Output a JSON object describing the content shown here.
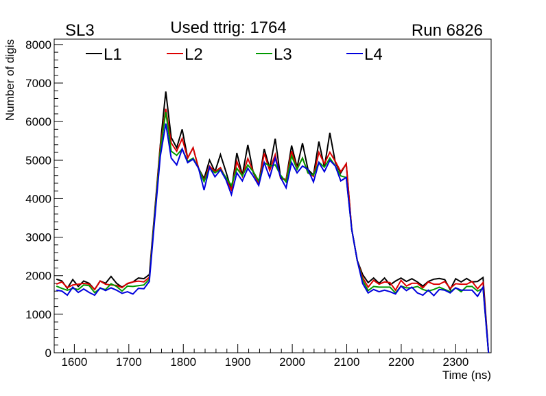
{
  "chart_data": {
    "type": "line",
    "title_left": "SL3",
    "title": "Used ttrig: 1764",
    "title_right": "Run 6826",
    "xlabel": "Time (ns)",
    "ylabel": "Number of digis",
    "xlim": [
      1563,
      2365
    ],
    "ylim": [
      0,
      8140
    ],
    "x_start": 1567,
    "x_step": 10.04,
    "xticks": [
      1600,
      1700,
      1800,
      1900,
      2000,
      2100,
      2200,
      2300
    ],
    "yticks": [
      0,
      1000,
      2000,
      3000,
      4000,
      5000,
      6000,
      7000,
      8000
    ],
    "grid": false,
    "legend_position": "top",
    "series": [
      {
        "name": "L1",
        "color": "#000000",
        "values": [
          1910,
          1863,
          1673,
          1898,
          1720,
          1863,
          1803,
          1643,
          1863,
          1803,
          1981,
          1803,
          1703,
          1791,
          1839,
          1940,
          1922,
          2028,
          3700,
          5400,
          6780,
          5587,
          5320,
          5800,
          5053,
          5320,
          4786,
          4520,
          5000,
          4698,
          5142,
          4698,
          4223,
          5184,
          4609,
          5397,
          4668,
          4401,
          5290,
          4786,
          5557,
          4549,
          4490,
          5379,
          4816,
          5439,
          4757,
          4609,
          5480,
          4816,
          5706,
          4935,
          4668,
          4905,
          3200,
          2400,
          2028,
          1821,
          1940,
          1803,
          1940,
          1762,
          1862,
          1940,
          1851,
          1922,
          1839,
          1732,
          1851,
          1910,
          1928,
          1898,
          1643,
          1922,
          1839,
          1928,
          1839,
          1851,
          1952,
          0
        ]
      },
      {
        "name": "L2",
        "color": "#dd0000",
        "values": [
          1780,
          1840,
          1690,
          1760,
          1780,
          1800,
          1780,
          1640,
          1860,
          1780,
          1760,
          1750,
          1690,
          1800,
          1840,
          1860,
          1840,
          1960,
          3650,
          5350,
          6330,
          5445,
          5231,
          5557,
          5053,
          5320,
          4786,
          4466,
          4845,
          4698,
          4804,
          4520,
          4223,
          4964,
          4579,
          5041,
          4698,
          4401,
          5172,
          4727,
          5142,
          4520,
          4490,
          5231,
          4786,
          5053,
          4668,
          4579,
          5202,
          4905,
          5202,
          4964,
          4698,
          4905,
          3200,
          2400,
          1950,
          1703,
          1880,
          1779,
          1839,
          1821,
          1625,
          1880,
          1732,
          1803,
          1803,
          1685,
          1839,
          1779,
          1779,
          1851,
          1673,
          1791,
          1779,
          1779,
          1851,
          1661,
          1821,
          0
        ]
      },
      {
        "name": "L3",
        "color": "#009900",
        "values": [
          1730,
          1670,
          1620,
          1670,
          1640,
          1760,
          1740,
          1560,
          1670,
          1640,
          1790,
          1720,
          1600,
          1730,
          1720,
          1740,
          1760,
          1910,
          3600,
          5250,
          6250,
          5231,
          5124,
          5290,
          4964,
          5053,
          4786,
          4440,
          4786,
          4668,
          4757,
          4549,
          4342,
          4786,
          4590,
          4875,
          4698,
          4460,
          4935,
          4846,
          4875,
          4609,
          4431,
          5113,
          4757,
          5053,
          4668,
          4609,
          4947,
          4816,
          5053,
          4846,
          4590,
          4550,
          3200,
          2400,
          1880,
          1613,
          1720,
          1703,
          1703,
          1703,
          1554,
          1732,
          1685,
          1685,
          1720,
          1643,
          1601,
          1643,
          1703,
          1643,
          1584,
          1685,
          1584,
          1720,
          1720,
          1601,
          1673,
          0
        ]
      },
      {
        "name": "L4",
        "color": "#0000dd",
        "values": [
          1625,
          1601,
          1495,
          1703,
          1566,
          1655,
          1566,
          1495,
          1685,
          1613,
          1685,
          1625,
          1542,
          1584,
          1525,
          1673,
          1661,
          1851,
          3500,
          5100,
          5950,
          5053,
          4875,
          5290,
          4934,
          5024,
          4786,
          4222,
          4815,
          4567,
          4745,
          4490,
          4105,
          4668,
          4460,
          4786,
          4579,
          4342,
          4935,
          4549,
          5053,
          4549,
          4282,
          4935,
          4668,
          4846,
          4757,
          4431,
          4935,
          4698,
          4994,
          4846,
          4460,
          4549,
          3200,
          2400,
          1797,
          1554,
          1643,
          1584,
          1625,
          1584,
          1524,
          1732,
          1613,
          1703,
          1554,
          1495,
          1625,
          1483,
          1643,
          1625,
          1554,
          1685,
          1625,
          1625,
          1625,
          1465,
          1703,
          0
        ]
      }
    ]
  }
}
